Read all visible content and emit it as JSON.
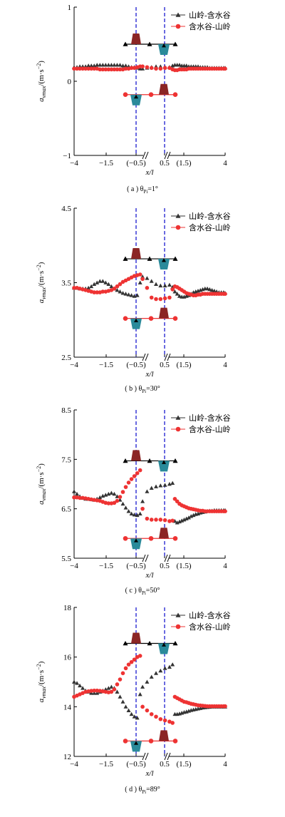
{
  "legend": [
    "山岭-含水谷",
    "含水谷-山岭"
  ],
  "xlabel": "x/l",
  "ylabel_main": "a",
  "ylabel_sub": "vmax",
  "ylabel_unit": "/(m·s",
  "ylabel_exp": "−2",
  "ylabel_close": ")",
  "xtick_labels": [
    "−4",
    "−1.5",
    "(−0.5)",
    "0.5",
    "(1.5)",
    "4"
  ],
  "colors": {
    "series1": "#333333",
    "series2": "#ee3333",
    "dashed": "#1a1ad0",
    "hill": "#8b2525",
    "valley": "#2a8a9a"
  },
  "chart_data": [
    {
      "type": "scatter",
      "caption_prefix": "( a )  θ",
      "caption_sub": "Pi",
      "caption_value": "=1°",
      "yticks": [
        "1",
        "0",
        "−1"
      ],
      "ylim": [
        -1,
        1
      ],
      "xticks": [
        -4,
        -1.5,
        -0.5,
        0.5,
        1.5,
        4
      ],
      "series": [
        {
          "name": "山岭-含水谷",
          "marker": "triangle",
          "x": [
            -4,
            -3.85,
            -3.7,
            -3.55,
            -3.4,
            -3.25,
            -3.1,
            -2.95,
            -2.8,
            -2.65,
            -2.5,
            -2.35,
            -2.2,
            -2.05,
            -1.9,
            -1.75,
            -1.6,
            -1.45,
            -1.3,
            -1.15,
            -1.0,
            -0.85,
            -0.7,
            -0.55,
            -0.45,
            -0.3,
            -0.15,
            0,
            0.15,
            0.3,
            0.45,
            0.6,
            0.75,
            0.9,
            1.05,
            1.2,
            1.35,
            1.5,
            1.65,
            1.8,
            1.95,
            2.1,
            2.25,
            2.4,
            2.55,
            2.7,
            2.85,
            3.0,
            3.15,
            3.3,
            3.45,
            3.6,
            3.75,
            3.9,
            4.0
          ],
          "y": [
            0.19,
            0.19,
            0.2,
            0.2,
            0.2,
            0.21,
            0.21,
            0.21,
            0.22,
            0.22,
            0.22,
            0.22,
            0.22,
            0.22,
            0.22,
            0.22,
            0.22,
            0.21,
            0.21,
            0.2,
            0.19,
            0.19,
            0.18,
            0.17,
            0.17,
            0.18,
            0.19,
            0.2,
            0.2,
            0.19,
            0.19,
            0.21,
            0.22,
            0.22,
            0.22,
            0.21,
            0.21,
            0.21,
            0.2,
            0.2,
            0.2,
            0.2,
            0.2,
            0.19,
            0.19,
            0.19,
            0.19,
            0.18,
            0.18,
            0.18,
            0.18,
            0.18,
            0.18,
            0.18,
            0.18
          ]
        },
        {
          "name": "含水谷-山岭",
          "marker": "circle",
          "x": [
            -4,
            -3.85,
            -3.7,
            -3.55,
            -3.4,
            -3.25,
            -3.1,
            -2.95,
            -2.8,
            -2.65,
            -2.5,
            -2.35,
            -2.2,
            -2.05,
            -1.9,
            -1.75,
            -1.6,
            -1.45,
            -1.3,
            -1.15,
            -1.0,
            -0.85,
            -0.7,
            -0.55,
            -0.45,
            -0.3,
            -0.15,
            0,
            0.15,
            0.3,
            0.45,
            0.6,
            0.75,
            0.9,
            1.05,
            1.2,
            1.35,
            1.5,
            1.65,
            1.8,
            1.95,
            2.1,
            2.25,
            2.4,
            2.55,
            2.7,
            2.85,
            3.0,
            3.15,
            3.3,
            3.45,
            3.6,
            3.75,
            3.9,
            4.0
          ],
          "y": [
            0.17,
            0.17,
            0.17,
            0.17,
            0.17,
            0.17,
            0.17,
            0.17,
            0.17,
            0.16,
            0.16,
            0.16,
            0.16,
            0.16,
            0.16,
            0.16,
            0.16,
            0.16,
            0.17,
            0.17,
            0.18,
            0.18,
            0.19,
            0.2,
            0.2,
            0.19,
            0.18,
            0.17,
            0.17,
            0.18,
            0.18,
            0.16,
            0.15,
            0.15,
            0.16,
            0.16,
            0.16,
            0.16,
            0.17,
            0.17,
            0.17,
            0.17,
            0.17,
            0.17,
            0.17,
            0.17,
            0.17,
            0.17,
            0.17,
            0.17,
            0.17,
            0.17,
            0.17,
            0.17,
            0.17
          ]
        }
      ],
      "illustration_y": {
        "upper": 0.5,
        "lower": -0.18
      }
    },
    {
      "type": "scatter",
      "caption_prefix": "( b )  θ",
      "caption_sub": "Pi",
      "caption_value": "=30°",
      "yticks": [
        "4.5",
        "3.5",
        "2.5"
      ],
      "ylim": [
        2.5,
        4.5
      ],
      "xticks": [
        -4,
        -1.5,
        -0.5,
        0.5,
        1.5,
        4
      ],
      "series": [
        {
          "name": "山岭-含水谷",
          "marker": "triangle",
          "x": [
            -4,
            -3.85,
            -3.7,
            -3.55,
            -3.4,
            -3.25,
            -3.1,
            -2.95,
            -2.8,
            -2.65,
            -2.5,
            -2.35,
            -2.2,
            -2.05,
            -1.9,
            -1.75,
            -1.6,
            -1.45,
            -1.3,
            -1.15,
            -1.0,
            -0.85,
            -0.7,
            -0.55,
            -0.45,
            -0.3,
            -0.15,
            0,
            0.15,
            0.3,
            0.45,
            0.6,
            0.75,
            0.9,
            1.05,
            1.2,
            1.35,
            1.5,
            1.65,
            1.8,
            1.95,
            2.1,
            2.25,
            2.4,
            2.55,
            2.7,
            2.85,
            3.0,
            3.15,
            3.3,
            3.45,
            3.6,
            3.75,
            3.9,
            4.0
          ],
          "y": [
            3.43,
            3.43,
            3.42,
            3.42,
            3.42,
            3.43,
            3.45,
            3.48,
            3.5,
            3.52,
            3.52,
            3.5,
            3.48,
            3.45,
            3.42,
            3.4,
            3.38,
            3.36,
            3.35,
            3.34,
            3.33,
            3.32,
            3.33,
            3.5,
            3.58,
            3.56,
            3.52,
            3.48,
            3.46,
            3.46,
            3.47,
            3.44,
            3.38,
            3.35,
            3.32,
            3.31,
            3.31,
            3.32,
            3.33,
            3.35,
            3.37,
            3.38,
            3.39,
            3.4,
            3.41,
            3.42,
            3.42,
            3.41,
            3.4,
            3.39,
            3.38,
            3.37,
            3.37,
            3.37,
            3.36
          ]
        },
        {
          "name": "含水谷-山岭",
          "marker": "circle",
          "x": [
            -4,
            -3.85,
            -3.7,
            -3.55,
            -3.4,
            -3.25,
            -3.1,
            -2.95,
            -2.8,
            -2.65,
            -2.5,
            -2.35,
            -2.2,
            -2.05,
            -1.9,
            -1.75,
            -1.6,
            -1.45,
            -1.3,
            -1.15,
            -1.0,
            -0.85,
            -0.7,
            -0.55,
            -0.45,
            -0.3,
            -0.15,
            0,
            0.15,
            0.3,
            0.45,
            0.6,
            0.75,
            0.9,
            1.05,
            1.2,
            1.35,
            1.5,
            1.65,
            1.8,
            1.95,
            2.1,
            2.25,
            2.4,
            2.55,
            2.7,
            2.85,
            3.0,
            3.15,
            3.3,
            3.45,
            3.6,
            3.75,
            3.9,
            4.0
          ],
          "y": [
            3.43,
            3.43,
            3.42,
            3.41,
            3.4,
            3.39,
            3.38,
            3.37,
            3.37,
            3.37,
            3.38,
            3.38,
            3.39,
            3.4,
            3.42,
            3.45,
            3.48,
            3.51,
            3.53,
            3.55,
            3.57,
            3.59,
            3.6,
            3.61,
            3.55,
            3.43,
            3.3,
            3.28,
            3.28,
            3.29,
            3.3,
            3.41,
            3.45,
            3.44,
            3.42,
            3.4,
            3.38,
            3.36,
            3.35,
            3.34,
            3.33,
            3.33,
            3.34,
            3.34,
            3.35,
            3.35,
            3.35,
            3.35,
            3.35,
            3.35,
            3.35,
            3.35,
            3.35,
            3.35,
            3.35
          ]
        }
      ],
      "illustration_y": {
        "upper": 3.82,
        "lower": 3.02
      }
    },
    {
      "type": "scatter",
      "caption_prefix": "( c )  θ",
      "caption_sub": "Pi",
      "caption_value": "=50°",
      "yticks": [
        "8.5",
        "7.5",
        "6.5",
        "5.5"
      ],
      "ylim": [
        5.5,
        8.5
      ],
      "xticks": [
        -4,
        -1.5,
        -0.5,
        0.5,
        1.5,
        4
      ],
      "series": [
        {
          "name": "山岭-含水谷",
          "marker": "triangle",
          "x": [
            -4,
            -3.85,
            -3.7,
            -3.55,
            -3.4,
            -3.25,
            -3.1,
            -2.95,
            -2.8,
            -2.65,
            -2.5,
            -2.35,
            -2.2,
            -2.05,
            -1.9,
            -1.75,
            -1.6,
            -1.45,
            -1.3,
            -1.15,
            -1.0,
            -0.85,
            -0.7,
            -0.55,
            -0.45,
            -0.3,
            -0.15,
            0,
            0.15,
            0.3,
            0.45,
            0.6,
            0.75,
            0.9,
            1.05,
            1.2,
            1.35,
            1.5,
            1.65,
            1.8,
            1.95,
            2.1,
            2.25,
            2.4,
            2.55,
            2.7,
            2.85,
            3.0,
            3.15,
            3.3,
            3.45,
            3.6,
            3.75,
            3.9,
            4.0
          ],
          "y": [
            6.85,
            6.8,
            6.75,
            6.72,
            6.7,
            6.7,
            6.69,
            6.68,
            6.7,
            6.73,
            6.76,
            6.78,
            6.8,
            6.82,
            6.8,
            6.75,
            6.68,
            6.6,
            6.52,
            6.45,
            6.4,
            6.38,
            6.37,
            6.4,
            6.65,
            6.85,
            6.92,
            6.95,
            6.97,
            6.98,
            7.0,
            7.02,
            6.25,
            6.22,
            6.24,
            6.26,
            6.28,
            6.3,
            6.32,
            6.35,
            6.37,
            6.39,
            6.4,
            6.42,
            6.43,
            6.44,
            6.45,
            6.46,
            6.46,
            6.47,
            6.47,
            6.47,
            6.47,
            6.47,
            6.47
          ]
        },
        {
          "name": "含水谷-山岭",
          "marker": "circle",
          "x": [
            -4,
            -3.85,
            -3.7,
            -3.55,
            -3.4,
            -3.25,
            -3.1,
            -2.95,
            -2.8,
            -2.65,
            -2.5,
            -2.35,
            -2.2,
            -2.05,
            -1.9,
            -1.75,
            -1.6,
            -1.45,
            -1.3,
            -1.15,
            -1.0,
            -0.85,
            -0.7,
            -0.55,
            -0.45,
            -0.3,
            -0.15,
            0,
            0.15,
            0.3,
            0.45,
            0.6,
            0.75,
            0.9,
            1.05,
            1.2,
            1.35,
            1.5,
            1.65,
            1.8,
            1.95,
            2.1,
            2.25,
            2.4,
            2.55,
            2.7,
            2.85,
            3.0,
            3.15,
            3.3,
            3.45,
            3.6,
            3.75,
            3.9,
            4.0
          ],
          "y": [
            6.73,
            6.73,
            6.72,
            6.72,
            6.71,
            6.7,
            6.69,
            6.68,
            6.67,
            6.66,
            6.64,
            6.62,
            6.61,
            6.61,
            6.62,
            6.66,
            6.74,
            6.84,
            6.94,
            7.03,
            7.1,
            7.16,
            7.22,
            7.28,
            6.5,
            6.3,
            6.28,
            6.28,
            6.28,
            6.27,
            6.25,
            6.26,
            6.7,
            6.65,
            6.6,
            6.57,
            6.55,
            6.53,
            6.51,
            6.5,
            6.49,
            6.48,
            6.47,
            6.46,
            6.46,
            6.45,
            6.45,
            6.45,
            6.45,
            6.45,
            6.45,
            6.45,
            6.45,
            6.45,
            6.45
          ]
        }
      ],
      "illustration_y": {
        "upper": 7.47,
        "lower": 5.9
      }
    },
    {
      "type": "scatter",
      "caption_prefix": "( d )  θ",
      "caption_sub": "Pi",
      "caption_value": "=89°",
      "yticks": [
        "18",
        "16",
        "14",
        "12"
      ],
      "ylim": [
        12,
        18
      ],
      "xticks": [
        -4,
        -1.5,
        -0.5,
        0.5,
        1.5,
        4
      ],
      "series": [
        {
          "name": "山岭-含水谷",
          "marker": "triangle",
          "x": [
            -4,
            -3.85,
            -3.7,
            -3.55,
            -3.4,
            -3.25,
            -3.1,
            -2.95,
            -2.8,
            -2.65,
            -2.5,
            -2.35,
            -2.2,
            -2.05,
            -1.9,
            -1.75,
            -1.6,
            -1.45,
            -1.3,
            -1.15,
            -1.0,
            -0.85,
            -0.7,
            -0.55,
            -0.45,
            -0.3,
            -0.15,
            0,
            0.15,
            0.3,
            0.45,
            0.6,
            0.75,
            0.9,
            1.05,
            1.2,
            1.35,
            1.5,
            1.65,
            1.8,
            1.95,
            2.1,
            2.25,
            2.4,
            2.55,
            2.7,
            2.85,
            3.0,
            3.15,
            3.3,
            3.45,
            3.6,
            3.75,
            3.9,
            4.0
          ],
          "y": [
            15.0,
            14.95,
            14.85,
            14.75,
            14.65,
            14.6,
            14.55,
            14.55,
            14.55,
            14.6,
            14.65,
            14.7,
            14.75,
            14.8,
            14.75,
            14.6,
            14.4,
            14.2,
            14.0,
            13.85,
            13.7,
            13.6,
            13.55,
            14.5,
            14.8,
            15.0,
            15.2,
            15.35,
            15.45,
            15.55,
            15.6,
            15.7,
            13.7,
            13.7,
            13.72,
            13.75,
            13.78,
            13.8,
            13.83,
            13.86,
            13.88,
            13.9,
            13.92,
            13.94,
            13.96,
            13.97,
            13.98,
            13.99,
            14.0,
            14.0,
            14.0,
            14.0,
            14.0,
            14.0,
            14.0
          ]
        },
        {
          "name": "含水谷-山岭",
          "marker": "circle",
          "x": [
            -4,
            -3.85,
            -3.7,
            -3.55,
            -3.4,
            -3.25,
            -3.1,
            -2.95,
            -2.8,
            -2.65,
            -2.5,
            -2.35,
            -2.2,
            -2.05,
            -1.9,
            -1.75,
            -1.6,
            -1.45,
            -1.3,
            -1.15,
            -1.0,
            -0.85,
            -0.7,
            -0.55,
            -0.45,
            -0.3,
            -0.15,
            0,
            0.15,
            0.3,
            0.45,
            0.6,
            0.75,
            0.9,
            1.05,
            1.2,
            1.35,
            1.5,
            1.65,
            1.8,
            1.95,
            2.1,
            2.25,
            2.4,
            2.55,
            2.7,
            2.85,
            3.0,
            3.15,
            3.3,
            3.45,
            3.6,
            3.75,
            3.9,
            4.0
          ],
          "y": [
            14.4,
            14.45,
            14.5,
            14.55,
            14.6,
            14.62,
            14.64,
            14.65,
            14.65,
            14.64,
            14.62,
            14.6,
            14.58,
            14.6,
            14.7,
            14.9,
            15.1,
            15.35,
            15.55,
            15.7,
            15.8,
            15.9,
            16.0,
            16.05,
            14.0,
            13.85,
            13.7,
            13.6,
            13.5,
            13.45,
            13.4,
            13.35,
            14.4,
            14.35,
            14.3,
            14.25,
            14.2,
            14.18,
            14.15,
            14.12,
            14.1,
            14.08,
            14.06,
            14.05,
            14.04,
            14.03,
            14.02,
            14.02,
            14.02,
            14.02,
            14.02,
            14.02,
            14.02,
            14.02,
            14.02
          ]
        }
      ],
      "illustration_y": {
        "upper": 16.55,
        "lower": 12.62
      }
    }
  ]
}
